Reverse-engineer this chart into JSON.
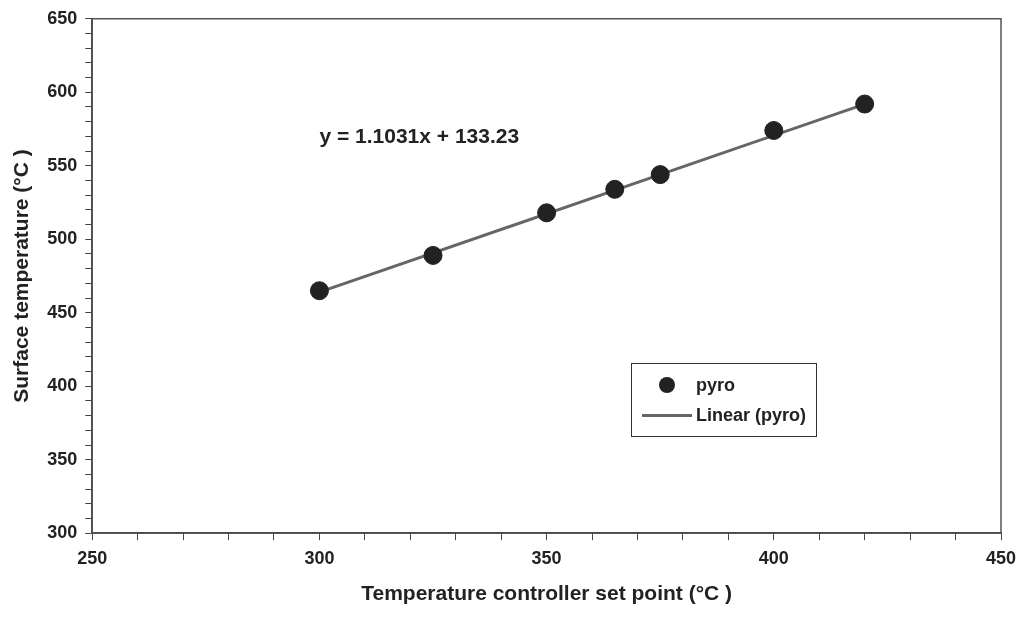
{
  "chart_data": {
    "type": "scatter",
    "xlabel": "Temperature controller set point (°C )",
    "ylabel": "Surface temperature (°C )",
    "series": [
      {
        "name": "pyro",
        "color": "#222222",
        "marker": "circle",
        "x": [
          300,
          325,
          350,
          365,
          375,
          400,
          420
        ],
        "values": [
          465,
          489,
          518,
          534,
          544,
          574,
          592
        ]
      },
      {
        "name": "Linear (pyro)",
        "type": "line",
        "color": "#666666",
        "marker": "none",
        "line_style": "solid",
        "x": [
          300,
          420
        ],
        "values": [
          464,
          592
        ]
      }
    ],
    "annotations": [
      "y = 1.1031x + 133.23"
    ],
    "xlim": [
      250,
      450
    ],
    "xticks": [
      250,
      {
        "value": 260,
        "label": null
      },
      {
        "value": 270,
        "label": null
      },
      {
        "value": 280,
        "label": null
      },
      {
        "value": 290,
        "label": null
      },
      300,
      {
        "value": 310,
        "label": null
      },
      {
        "value": 320,
        "label": null
      },
      {
        "value": 330,
        "label": null
      },
      {
        "value": 340,
        "label": null
      },
      350,
      {
        "value": 360,
        "label": null
      },
      {
        "value": 370,
        "label": null
      },
      {
        "value": 380,
        "label": null
      },
      {
        "value": 390,
        "label": null
      },
      400,
      {
        "value": 410,
        "label": null
      },
      {
        "value": 420,
        "label": null
      },
      {
        "value": 430,
        "label": null
      },
      {
        "value": 440,
        "label": null
      },
      450
    ],
    "ylim": [
      300,
      650
    ],
    "yticks": [
      300,
      {
        "value": 310,
        "label": null
      },
      {
        "value": 320,
        "label": null
      },
      {
        "value": 330,
        "label": null
      },
      {
        "value": 340,
        "label": null
      },
      350,
      {
        "value": 360,
        "label": null
      },
      {
        "value": 370,
        "label": null
      },
      {
        "value": 380,
        "label": null
      },
      {
        "value": 390,
        "label": null
      },
      400,
      {
        "value": 410,
        "label": null
      },
      {
        "value": 420,
        "label": null
      },
      {
        "value": 430,
        "label": null
      },
      {
        "value": 440,
        "label": null
      },
      450,
      {
        "value": 460,
        "label": null
      },
      {
        "value": 470,
        "label": null
      },
      {
        "value": 480,
        "label": null
      },
      {
        "value": 490,
        "label": null
      },
      500,
      {
        "value": 510,
        "label": null
      },
      {
        "value": 520,
        "label": null
      },
      {
        "value": 530,
        "label": null
      },
      {
        "value": 540,
        "label": null
      },
      550,
      {
        "value": 560,
        "label": null
      },
      {
        "value": 570,
        "label": null
      },
      {
        "value": 580,
        "label": null
      },
      {
        "value": 590,
        "label": null
      },
      600,
      {
        "value": 610,
        "label": null
      },
      {
        "value": 620,
        "label": null
      },
      {
        "value": 630,
        "label": null
      },
      {
        "value": 640,
        "label": null
      },
      650
    ],
    "grid": false,
    "legend": "bottom right"
  }
}
